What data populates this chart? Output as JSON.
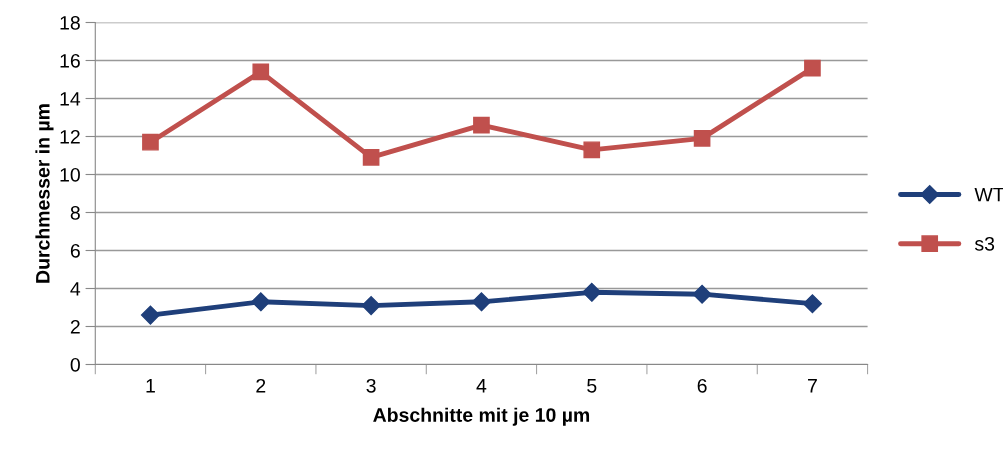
{
  "chart_data": {
    "type": "line",
    "xlabel": "Abschnitte mit je 10 µm",
    "ylabel": "Durchmesser in µm",
    "categories": [
      "1",
      "2",
      "3",
      "4",
      "5",
      "6",
      "7"
    ],
    "series": [
      {
        "name": "WT",
        "color": "#1f3f7a",
        "marker": "diamond",
        "values": [
          2.6,
          3.3,
          3.1,
          3.3,
          3.8,
          3.7,
          3.2
        ]
      },
      {
        "name": "s3",
        "color": "#c0504d",
        "marker": "square",
        "values": [
          11.7,
          15.4,
          10.9,
          12.6,
          11.3,
          11.9,
          15.6
        ]
      }
    ],
    "ylim": [
      0,
      18
    ],
    "yticks": [
      0,
      2,
      4,
      6,
      8,
      10,
      12,
      14,
      16,
      18
    ],
    "grid": "y",
    "legend": "right",
    "line_style": "solid"
  }
}
